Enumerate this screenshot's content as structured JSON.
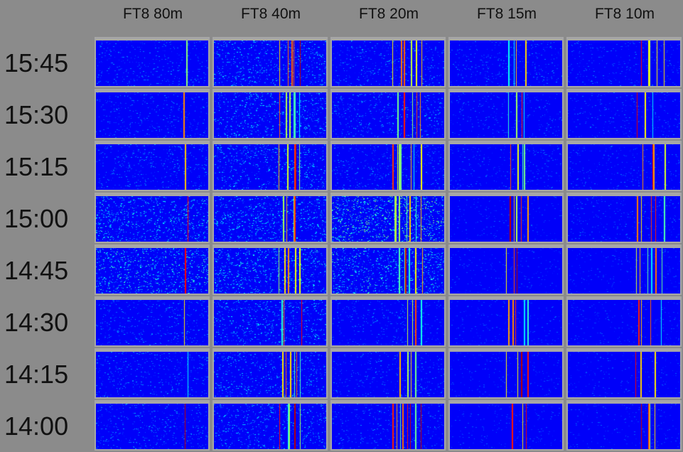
{
  "columns": [
    "FT8 80m",
    "FT8 40m",
    "FT8 20m",
    "FT8 15m",
    "FT8 10m"
  ],
  "rows": [
    "15:45",
    "15:30",
    "15:15",
    "15:00",
    "14:45",
    "14:30",
    "14:15",
    "14:00"
  ],
  "colors": {
    "background": "#8b8b8b",
    "waterfall_base": "#0a0a9a"
  }
}
